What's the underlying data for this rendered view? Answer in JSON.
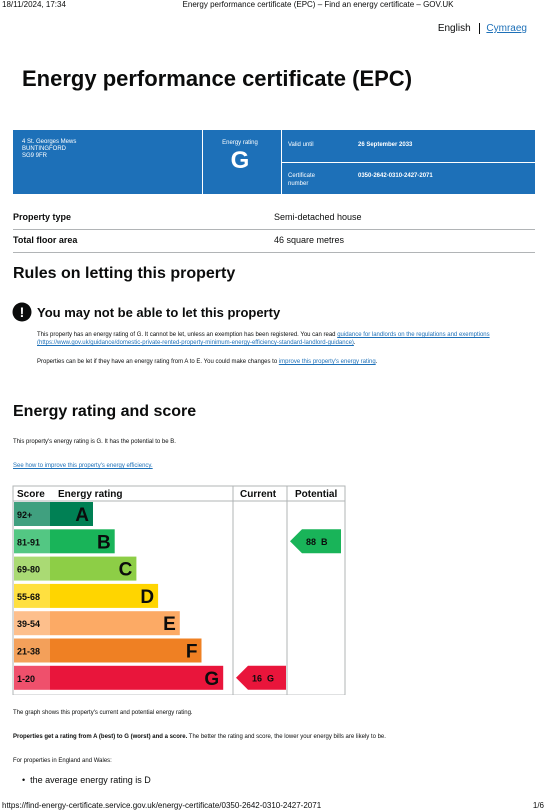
{
  "browser_header": {
    "datetime": "18/11/2024, 17:34",
    "page_title": "Energy performance certificate (EPC) – Find an energy certificate – GOV.UK"
  },
  "language": {
    "english": "English",
    "welsh": "Cymraeg"
  },
  "title": "Energy performance certificate (EPC)",
  "summary": {
    "address": [
      "4 St. Georges Mews",
      "BUNTINGFORD",
      "SG9 9FR"
    ],
    "rating_label": "Energy rating",
    "rating": "G",
    "valid_until_label": "Valid until",
    "valid_until": "26 September 2033",
    "certificate_number_label": "Certificate number",
    "certificate_number": "0350-2642-0310-2427-2071"
  },
  "property": {
    "rows": [
      [
        "Property type",
        "Semi-detached house"
      ],
      [
        "Total floor area",
        "46 square metres"
      ]
    ]
  },
  "rules": {
    "heading": "Rules on letting this property",
    "warning": "You may not be able to let this property",
    "p1_text": "This property has an energy rating of G. It cannot be let, unless an exemption has been registered. You can read ",
    "p1_link": "guidance for landlords on the regulations and exemptions (https://www.gov.uk/guidance/domestic-private-rented-property-minimum-energy-efficiency-standard-landlord-guidance)",
    "p1_end": ".",
    "p2_text": "Properties can be let if they have an energy rating from A to E. You could make changes to ",
    "p2_link": "improve this property's energy rating",
    "p2_end": "."
  },
  "rating_section": {
    "heading": "Energy rating and score",
    "intro": "This property's energy rating is G. It has the potential to be B.",
    "link": "See how to improve this property's energy efficiency.",
    "table": {
      "headers": [
        "Score",
        "Energy rating",
        "Current",
        "Potential"
      ],
      "bands": [
        {
          "score": "92+",
          "letter": "A",
          "color": "#008054"
        },
        {
          "score": "81-91",
          "letter": "B",
          "color": "#19b459"
        },
        {
          "score": "69-80",
          "letter": "C",
          "color": "#8dce46"
        },
        {
          "score": "55-68",
          "letter": "D",
          "color": "#ffd500"
        },
        {
          "score": "39-54",
          "letter": "E",
          "color": "#fcaa65"
        },
        {
          "score": "21-38",
          "letter": "F",
          "color": "#ef8023"
        },
        {
          "score": "1-20",
          "letter": "G",
          "color": "#e9153b"
        }
      ],
      "current": {
        "score": 16,
        "letter": "G"
      },
      "potential": {
        "score": 88,
        "letter": "B"
      }
    },
    "graph_note": "The graph shows this property's current and potential energy rating.",
    "rating_bold": "Properties get a rating from A (best) to G (worst) and a score.",
    "rating_rest": " The better the rating and score, the lower your energy bills are likely to be.",
    "england_wales": "For properties in England and Wales:",
    "bullets": [
      "the average energy rating is D"
    ]
  },
  "footer": {
    "url": "https://find-energy-certificate.service.gov.uk/energy-certificate/0350-2642-0310-2427-2071",
    "page": "1/6"
  }
}
